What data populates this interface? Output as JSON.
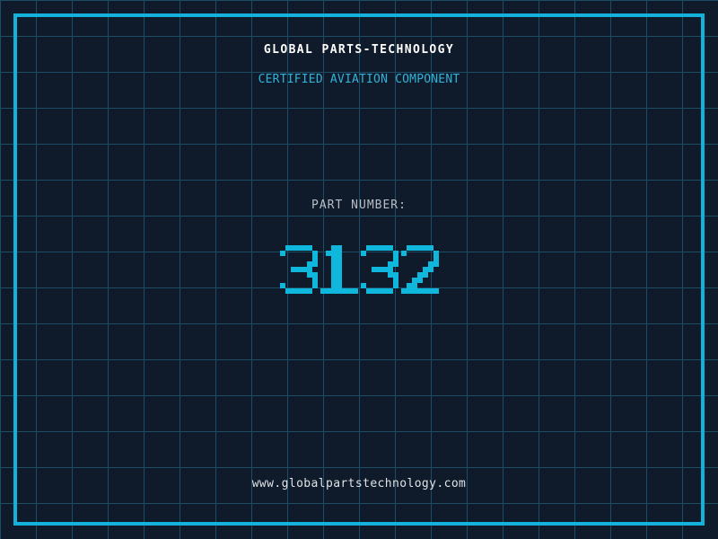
{
  "page": {
    "title": "GLOBAL PARTS-TECHNOLOGY",
    "subtitle": "CERTIFIED AVIATION COMPONENT",
    "part_label": "PART NUMBER:",
    "part_number": "3132",
    "website": "www.globalpartstechnology.com"
  },
  "colors": {
    "background": "#0f1a2a",
    "grid_line": "#1c4d64",
    "frame": "#14b2da",
    "digits": "#10b7dd",
    "title": "#ffffff",
    "subtitle": "#2fb3d9",
    "part_label": "#b7bec7",
    "website": "#dfe3e7"
  }
}
